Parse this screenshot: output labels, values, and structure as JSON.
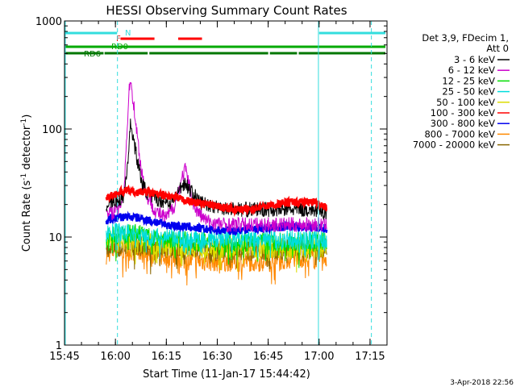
{
  "chart_data": {
    "type": "line",
    "title": "HESSI Observing Summary Count Rates",
    "xlabel": "Start Time (11-Jan-17 15:44:42)",
    "ylabel_main": "Count Rate (s",
    "ylabel_sup1": "-1",
    "ylabel_mid": " detector",
    "ylabel_sup2": "-1",
    "ylabel_end": ")",
    "yscale": "log",
    "ylim": [
      1,
      1000
    ],
    "xlim_min": [
      0,
      95
    ],
    "x_ticks": [
      {
        "label": "15:45",
        "min": 0
      },
      {
        "label": "16:00",
        "min": 15
      },
      {
        "label": "16:15",
        "min": 30
      },
      {
        "label": "16:30",
        "min": 45
      },
      {
        "label": "16:45",
        "min": 60
      },
      {
        "label": "17:00",
        "min": 75
      },
      {
        "label": "17:15",
        "min": 90
      }
    ],
    "y_ticks": [
      {
        "label": "1",
        "v": 1
      },
      {
        "label": "10",
        "v": 10
      },
      {
        "label": "100",
        "v": 100
      },
      {
        "label": "1000",
        "v": 1000
      }
    ],
    "legend_header": [
      "Det 3,9, FDecim 1,",
      "Att 0"
    ],
    "date_stamp": "3-Apr-2018 22:56",
    "data_start_min": 12.3,
    "data_end_min": 77.3,
    "series": [
      {
        "name": "3 - 6 keV",
        "color": "#000000",
        "base": 18,
        "noise": 0.07,
        "points": [
          [
            12.3,
            20
          ],
          [
            14,
            21
          ],
          [
            16,
            22
          ],
          [
            17.5,
            24
          ],
          [
            18.5,
            45
          ],
          [
            19.5,
            115
          ],
          [
            20.5,
            75
          ],
          [
            21.5,
            50
          ],
          [
            23,
            30
          ],
          [
            25,
            24
          ],
          [
            28,
            22
          ],
          [
            31,
            21
          ],
          [
            33,
            24
          ],
          [
            34.5,
            30
          ],
          [
            35.5,
            32
          ],
          [
            37,
            27
          ],
          [
            40,
            21
          ],
          [
            45,
            19
          ],
          [
            52,
            18
          ],
          [
            58,
            18
          ],
          [
            62,
            18
          ],
          [
            67,
            18
          ],
          [
            72,
            18
          ],
          [
            77.3,
            17
          ]
        ]
      },
      {
        "name": "6 - 12 keV",
        "color": "#cc00cc",
        "base": 14,
        "noise": 0.07,
        "points": [
          [
            12.3,
            16
          ],
          [
            14,
            17
          ],
          [
            16,
            18
          ],
          [
            17.5,
            26
          ],
          [
            18.5,
            110
          ],
          [
            19.3,
            300
          ],
          [
            20.2,
            190
          ],
          [
            21.2,
            100
          ],
          [
            22.5,
            45
          ],
          [
            24,
            25
          ],
          [
            27,
            17
          ],
          [
            30,
            15
          ],
          [
            32.5,
            20
          ],
          [
            34.5,
            34
          ],
          [
            35.5,
            43
          ],
          [
            36.5,
            32
          ],
          [
            38.5,
            18
          ],
          [
            42,
            14
          ],
          [
            47,
            13
          ],
          [
            53,
            13
          ],
          [
            60,
            13
          ],
          [
            67,
            13
          ],
          [
            72,
            13
          ],
          [
            77.3,
            13
          ]
        ]
      },
      {
        "name": "12 - 25 keV",
        "color": "#00dd00",
        "base": 10,
        "noise": 0.09,
        "points": [
          [
            12.3,
            10
          ],
          [
            18,
            10.5
          ],
          [
            20,
            11
          ],
          [
            30,
            9.5
          ],
          [
            40,
            9
          ],
          [
            50,
            9
          ],
          [
            60,
            9
          ],
          [
            70,
            9
          ],
          [
            77.3,
            9
          ]
        ]
      },
      {
        "name": "25 - 50 keV",
        "color": "#00dddd",
        "base": 10,
        "noise": 0.09,
        "points": [
          [
            12.3,
            11
          ],
          [
            18,
            11
          ],
          [
            25,
            10
          ],
          [
            35,
            9.5
          ],
          [
            45,
            9.5
          ],
          [
            55,
            9.5
          ],
          [
            65,
            9.5
          ],
          [
            77.3,
            9.5
          ]
        ]
      },
      {
        "name": "50 - 100 keV",
        "color": "#dddd00",
        "base": 9,
        "noise": 0.1,
        "points": [
          [
            12.3,
            9
          ],
          [
            20,
            9
          ],
          [
            30,
            8.5
          ],
          [
            40,
            8
          ],
          [
            50,
            8
          ],
          [
            60,
            8
          ],
          [
            70,
            8
          ],
          [
            77.3,
            8
          ]
        ]
      },
      {
        "name": "100 - 300 keV",
        "color": "#ff0000",
        "base": 24,
        "noise": 0.035,
        "points": [
          [
            12.3,
            23
          ],
          [
            15,
            25
          ],
          [
            18,
            27
          ],
          [
            21,
            26
          ],
          [
            24,
            26
          ],
          [
            27,
            25
          ],
          [
            30,
            24
          ],
          [
            33,
            23
          ],
          [
            38,
            21
          ],
          [
            42,
            20
          ],
          [
            46,
            19
          ],
          [
            50,
            18
          ],
          [
            54,
            18
          ],
          [
            58,
            19
          ],
          [
            62,
            20
          ],
          [
            66,
            21
          ],
          [
            70,
            21
          ],
          [
            74,
            21
          ],
          [
            77.3,
            19
          ]
        ]
      },
      {
        "name": "300 - 800 keV",
        "color": "#0000ee",
        "base": 13,
        "noise": 0.04,
        "points": [
          [
            12.3,
            14
          ],
          [
            15,
            15
          ],
          [
            18,
            15.5
          ],
          [
            22,
            15
          ],
          [
            26,
            14
          ],
          [
            30,
            13
          ],
          [
            35,
            12.5
          ],
          [
            40,
            12
          ],
          [
            45,
            11.5
          ],
          [
            50,
            11.5
          ],
          [
            55,
            12
          ],
          [
            60,
            12
          ],
          [
            65,
            12.5
          ],
          [
            70,
            12.5
          ],
          [
            77.3,
            12
          ]
        ]
      },
      {
        "name": "800 - 7000 keV",
        "color": "#ff8800",
        "base": 6.5,
        "noise": 0.1,
        "points": [
          [
            12.3,
            7
          ],
          [
            15,
            7.5
          ],
          [
            20,
            7.5
          ],
          [
            25,
            7
          ],
          [
            30,
            6.5
          ],
          [
            40,
            6
          ],
          [
            50,
            6
          ],
          [
            60,
            6
          ],
          [
            70,
            6.5
          ],
          [
            77.3,
            6.5
          ]
        ]
      },
      {
        "name": "7000 - 20000 keV",
        "color": "#886600",
        "base": 8,
        "noise": 0.1,
        "points": [
          [
            12.3,
            8
          ],
          [
            20,
            8.5
          ],
          [
            30,
            8
          ],
          [
            40,
            7.5
          ],
          [
            50,
            7.5
          ],
          [
            60,
            7.5
          ],
          [
            70,
            8
          ],
          [
            77.3,
            8
          ]
        ]
      }
    ],
    "flag_bars": [
      {
        "label": "N",
        "color": "#33dddd",
        "y_level": 1,
        "segments": [
          [
            0,
            15.5
          ],
          [
            75,
            95
          ]
        ]
      },
      {
        "label": "F",
        "color": "#ff0000",
        "y_level": 2,
        "segments": [
          [
            16.5,
            26.5
          ],
          [
            33.5,
            40.5
          ]
        ]
      },
      {
        "label": "RD0",
        "color": "#00aa00",
        "y_level": 3,
        "segments": [
          [
            0,
            98
          ]
        ]
      },
      {
        "label": "RD6",
        "color": "#007700",
        "y_level": 4,
        "segments": [
          [
            0,
            11.5
          ],
          [
            11.8,
            24.5
          ],
          [
            25,
            60
          ],
          [
            60.5,
            68.5
          ],
          [
            69,
            98
          ]
        ]
      }
    ],
    "saa_lines_solid_min": [
      0,
      74.8
    ],
    "saa_lines_dashed_min": [
      15.6,
      90.4
    ]
  }
}
